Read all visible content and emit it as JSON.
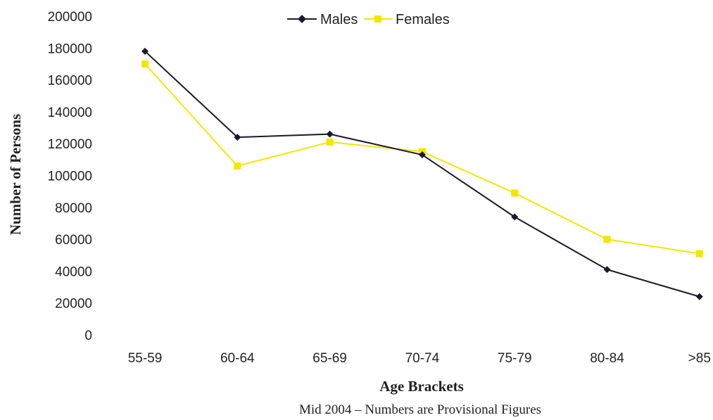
{
  "chart_data": {
    "type": "line",
    "categories": [
      "55-59",
      "60-64",
      "65-69",
      "70-74",
      "75-79",
      "80-84",
      ">85"
    ],
    "series": [
      {
        "name": "Males",
        "values": [
          178000,
          124000,
          126000,
          113000,
          74000,
          41000,
          24000
        ],
        "color": "#1a1a2e",
        "marker": "diamond"
      },
      {
        "name": "Females",
        "values": [
          170000,
          106000,
          121000,
          115000,
          89000,
          60000,
          51000
        ],
        "color": "#f5e600",
        "marker": "square"
      }
    ],
    "ylim": [
      0,
      200000
    ],
    "yticks": [
      0,
      20000,
      40000,
      60000,
      80000,
      100000,
      120000,
      140000,
      160000,
      180000,
      200000
    ],
    "xlabel": "Age Brackets",
    "ylabel": "Number of Persons",
    "subtitle": "Mid 2004 – Numbers are Provisional Figures",
    "legend_position": "top-center",
    "grid": false
  }
}
